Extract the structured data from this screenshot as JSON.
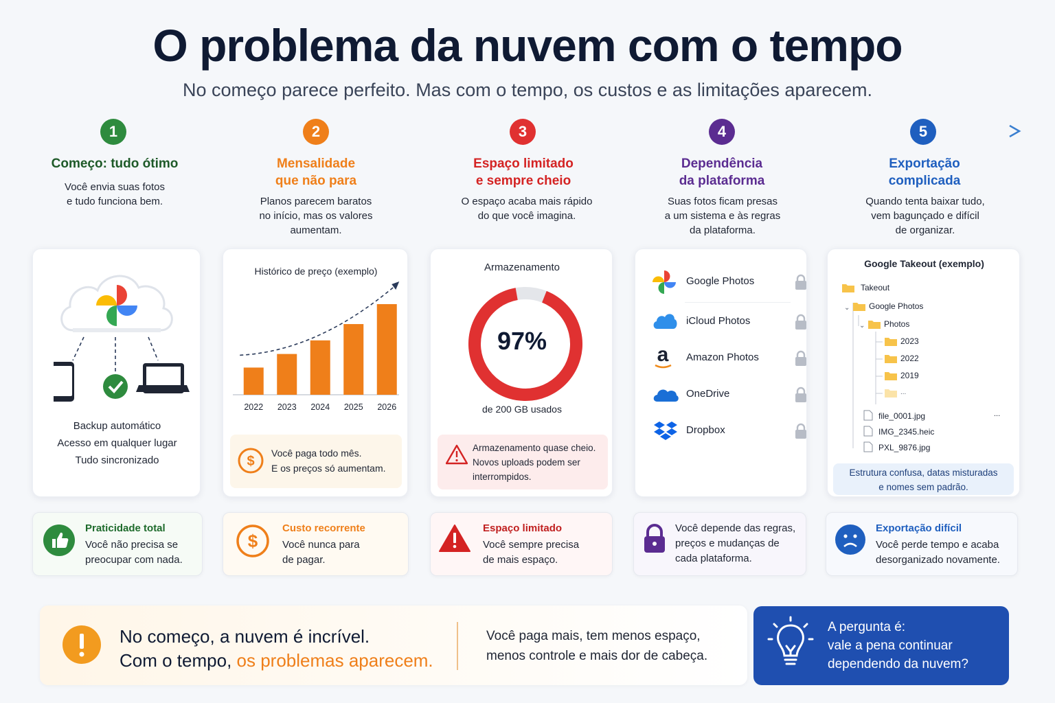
{
  "title": "O problema da nuvem com o tempo",
  "subtitle": "No começo parece perfeito. Mas com o tempo, os custos e as limitações aparecem.",
  "colors": {
    "green": "#2e8b3e",
    "orange": "#ef7f1a",
    "red": "#e03131",
    "purple": "#5b2c91",
    "blue": "#1f5fbf",
    "dark_navy": "#0f1a33"
  },
  "steps": [
    {
      "num": "1",
      "title_lines": [
        "Começo: tudo ótimo"
      ],
      "desc_lines": [
        "Você envia suas fotos",
        "e tudo funciona bem."
      ]
    },
    {
      "num": "2",
      "title_lines": [
        "Mensalidade",
        "que não para"
      ],
      "desc_lines": [
        "Planos parecem baratos",
        "no início, mas os valores",
        "aumentam."
      ]
    },
    {
      "num": "3",
      "title_lines": [
        "Espaço limitado",
        "e sempre cheio"
      ],
      "desc_lines": [
        "O espaço acaba mais rápido",
        "do que você imagina."
      ]
    },
    {
      "num": "4",
      "title_lines": [
        "Dependência",
        "da plataforma"
      ],
      "desc_lines": [
        "Suas fotos ficam presas",
        "a um sistema e às regras",
        "da plataforma."
      ]
    },
    {
      "num": "5",
      "title_lines": [
        "Exportação",
        "complicada"
      ],
      "desc_lines": [
        "Quando tenta baixar tudo,",
        "vem bagunçado e difícil",
        "de organizar."
      ]
    }
  ],
  "card1": {
    "icons": [
      "cloud-icon",
      "pinwheel-icon",
      "phone-icon",
      "check-icon",
      "laptop-icon"
    ],
    "lines": [
      "Backup automático",
      "Acesso em qualquer lugar",
      "Tudo sincronizado"
    ]
  },
  "card2": {
    "chart_title": "Histórico de preço (exemplo)",
    "note_lines": [
      "Você paga todo mês.",
      "E os preços só aumentam."
    ],
    "icon": "dollar-icon"
  },
  "chart_data": {
    "type": "bar",
    "title": "Histórico de preço (exemplo)",
    "categories": [
      "2022",
      "2023",
      "2024",
      "2025",
      "2026"
    ],
    "values": [
      30,
      45,
      60,
      78,
      100
    ],
    "trend_line": "dashed-arrow-up",
    "ylim": [
      0,
      100
    ],
    "color": "#ef7f1a"
  },
  "card3": {
    "title": "Armazenamento",
    "percent": 97,
    "percent_label": "97%",
    "used_label": "de 200 GB usados",
    "warning_lines": [
      "Armazenamento quase cheio.",
      "Novos uploads podem ser",
      "interrompidos."
    ],
    "icon": "warning-icon"
  },
  "card4": {
    "platforms": [
      {
        "name": "Google Photos",
        "icon": "google-photos-icon"
      },
      {
        "name": "iCloud Photos",
        "icon": "icloud-icon"
      },
      {
        "name": "Amazon Photos",
        "icon": "amazon-icon",
        "glyph": "a"
      },
      {
        "name": "OneDrive",
        "icon": "onedrive-icon"
      },
      {
        "name": "Dropbox",
        "icon": "dropbox-icon"
      }
    ],
    "lock_icon": "lock-icon"
  },
  "card5": {
    "title": "Google Takeout (exemplo)",
    "tree": [
      {
        "label": "Takeout",
        "type": "folder"
      },
      {
        "label": "Google Photos",
        "type": "folder"
      },
      {
        "label": "Photos",
        "type": "folder"
      },
      {
        "label": "2023",
        "type": "folder"
      },
      {
        "label": "2022",
        "type": "folder"
      },
      {
        "label": "2019",
        "type": "folder"
      },
      {
        "label": "...",
        "type": "folder"
      },
      {
        "label": "file_0001.jpg",
        "type": "file"
      },
      {
        "label": "IMG_2345.heic",
        "type": "file"
      },
      {
        "label": "PXL_9876.jpg",
        "type": "file"
      }
    ],
    "ellipsis": "...",
    "note_lines": [
      "Estrutura confusa, datas misturadas",
      "e nomes sem padrão."
    ]
  },
  "bottom_cards": [
    {
      "title": "Praticidade total",
      "lines": [
        "Você não precisa se",
        "preocupar com nada."
      ],
      "icon": "thumbs-up-icon"
    },
    {
      "title": "Custo recorrente",
      "lines": [
        "Você nunca para",
        "de pagar."
      ],
      "icon": "dollar-icon"
    },
    {
      "title": "Espaço limitado",
      "lines": [
        "Você sempre precisa",
        "de mais espaço."
      ],
      "icon": "warning-icon"
    },
    {
      "title": "",
      "lines": [
        "Você depende das regras,",
        "preços e mudanças de",
        "cada plataforma."
      ],
      "icon": "lock-icon"
    },
    {
      "title": "Exportação difícil",
      "lines": [
        "Você perde tempo e acaba",
        "desorganizado novamente."
      ],
      "icon": "sad-face-icon"
    }
  ],
  "footer": {
    "line1": "No começo, a nuvem é incrível.",
    "line2_prefix": "Com o tempo, ",
    "line2_highlight": "os problemas aparecem.",
    "middle_lines": [
      "Você paga mais, tem menos espaço,",
      "menos controle e mais dor de cabeça."
    ],
    "question_lines": [
      "A pergunta é:",
      "vale a pena continuar",
      "dependendo da nuvem?"
    ],
    "icons": [
      "exclamation-icon",
      "lightbulb-icon"
    ]
  }
}
